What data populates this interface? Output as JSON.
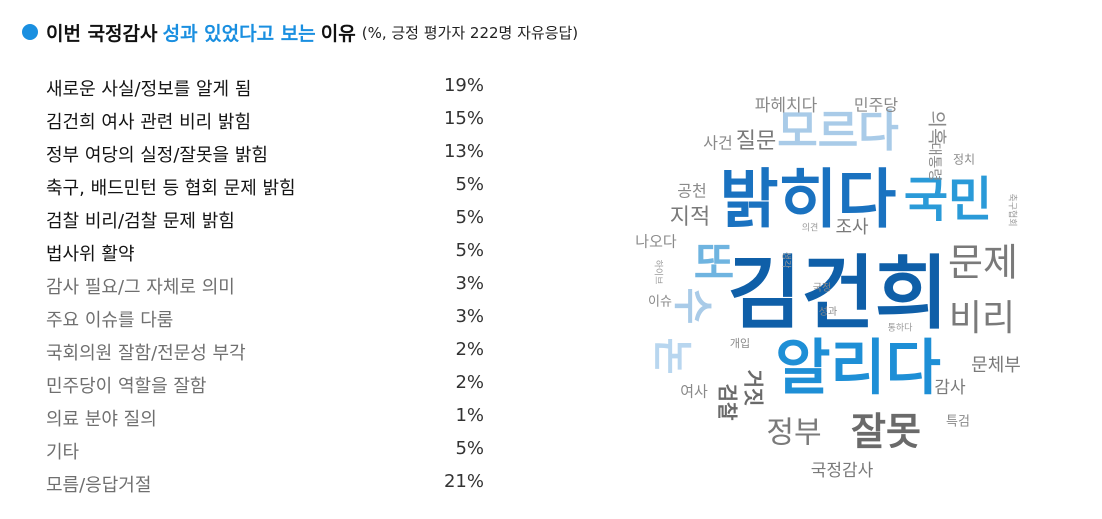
{
  "header": {
    "part1": "이번 국정감사",
    "part2": "성과 있었다고 보는",
    "part3": "이유",
    "note": "(%, 긍정 평가자 222명 자유응답)"
  },
  "chart_data": [
    {
      "type": "table",
      "title": "이번 국정감사 성과 있었다고 보는 이유",
      "subtitle": "(%, 긍정 평가자 222명 자유응답)",
      "rows": [
        {
          "label": "새로운 사실/정보를 알게 됨",
          "value": 19,
          "display": "19%",
          "emphasis": true
        },
        {
          "label": "김건희 여사 관련 비리 밝힘",
          "value": 15,
          "display": "15%",
          "emphasis": true
        },
        {
          "label": "정부 여당의 실정/잘못을 밝힘",
          "value": 13,
          "display": "13%",
          "emphasis": true
        },
        {
          "label": "축구, 배드민턴 등 협회 문제 밝힘",
          "value": 5,
          "display": "5%",
          "emphasis": true
        },
        {
          "label": "검찰 비리/검찰 문제 밝힘",
          "value": 5,
          "display": "5%",
          "emphasis": true
        },
        {
          "label": "법사위 활약",
          "value": 5,
          "display": "5%",
          "emphasis": true
        },
        {
          "label": "감사 필요/그 자체로 의미",
          "value": 3,
          "display": "3%",
          "emphasis": false
        },
        {
          "label": "주요 이슈를 다룸",
          "value": 3,
          "display": "3%",
          "emphasis": false
        },
        {
          "label": "국회의원 잘함/전문성 부각",
          "value": 2,
          "display": "2%",
          "emphasis": false
        },
        {
          "label": "민주당이 역할을 잘함",
          "value": 2,
          "display": "2%",
          "emphasis": false
        },
        {
          "label": "의료 분야 질의",
          "value": 1,
          "display": "1%",
          "emphasis": false
        },
        {
          "label": "기타",
          "value": 5,
          "display": "5%",
          "emphasis": false
        },
        {
          "label": "모름/응답거절",
          "value": 21,
          "display": "21%",
          "emphasis": false
        }
      ]
    },
    {
      "type": "wordcloud",
      "words": [
        {
          "text": "김건희",
          "weight": 100,
          "color": "#0f5fa8"
        },
        {
          "text": "밝히다",
          "weight": 78,
          "color": "#1a72c0"
        },
        {
          "text": "알리다",
          "weight": 72,
          "color": "#1e8fd6"
        },
        {
          "text": "국민",
          "weight": 58,
          "color": "#2a9ad8"
        },
        {
          "text": "모르다",
          "weight": 55,
          "color": "#a9cbe8"
        },
        {
          "text": "문제",
          "weight": 46,
          "color": "#7a7a7a"
        },
        {
          "text": "비리",
          "weight": 44,
          "color": "#7a7a7a"
        },
        {
          "text": "잘못",
          "weight": 44,
          "color": "#6a6a6a"
        },
        {
          "text": "또",
          "weight": 42,
          "color": "#6fb4e0"
        },
        {
          "text": "국",
          "weight": 40,
          "color": "#b8d6ef"
        },
        {
          "text": "수",
          "weight": 40,
          "color": "#a9cbe8"
        },
        {
          "text": "정부",
          "weight": 32,
          "color": "#7a7a7a"
        },
        {
          "text": "지적",
          "weight": 26,
          "color": "#7a7a7a"
        },
        {
          "text": "질문",
          "weight": 24,
          "color": "#7a7a7a"
        },
        {
          "text": "문체부",
          "weight": 20,
          "color": "#7a7a7a"
        },
        {
          "text": "파헤치다",
          "weight": 19,
          "color": "#8a8a8a"
        },
        {
          "text": "민주당",
          "weight": 17,
          "color": "#8a8a8a"
        },
        {
          "text": "조사",
          "weight": 18,
          "color": "#7a7a7a"
        },
        {
          "text": "검찰",
          "weight": 20,
          "color": "#6a6a6a"
        },
        {
          "text": "거짓",
          "weight": 20,
          "color": "#6a6a6a"
        },
        {
          "text": "감사",
          "weight": 18,
          "color": "#7a7a7a"
        },
        {
          "text": "국정감사",
          "weight": 18,
          "color": "#7a7a7a"
        },
        {
          "text": "사건",
          "weight": 16,
          "color": "#8a8a8a"
        },
        {
          "text": "공천",
          "weight": 16,
          "color": "#8a8a8a"
        },
        {
          "text": "나오다",
          "weight": 15,
          "color": "#8a8a8a"
        },
        {
          "text": "여사",
          "weight": 15,
          "color": "#8a8a8a"
        },
        {
          "text": "이슈",
          "weight": 14,
          "color": "#8a8a8a"
        },
        {
          "text": "특검",
          "weight": 13,
          "color": "#8a8a8a"
        },
        {
          "text": "정치",
          "weight": 13,
          "color": "#8a8a8a"
        },
        {
          "text": "의혹",
          "weight": 19,
          "color": "#8a8a8a"
        },
        {
          "text": "대통령",
          "weight": 14,
          "color": "#8a8a8a"
        },
        {
          "text": "의견",
          "weight": 9,
          "color": "#9a9a9a"
        },
        {
          "text": "개입",
          "weight": 11,
          "color": "#8a8a8a"
        },
        {
          "text": "국정",
          "weight": 10,
          "color": "#8a8a8a"
        },
        {
          "text": "성과",
          "weight": 10,
          "color": "#8a8a8a"
        },
        {
          "text": "통하다",
          "weight": 9,
          "color": "#9a9a9a"
        },
        {
          "text": "생각",
          "weight": 9,
          "color": "#9a9a9a"
        },
        {
          "text": "축구협회",
          "weight": 9,
          "color": "#9a9a9a"
        },
        {
          "text": "하이브",
          "weight": 9,
          "color": "#9a9a9a"
        }
      ]
    }
  ]
}
